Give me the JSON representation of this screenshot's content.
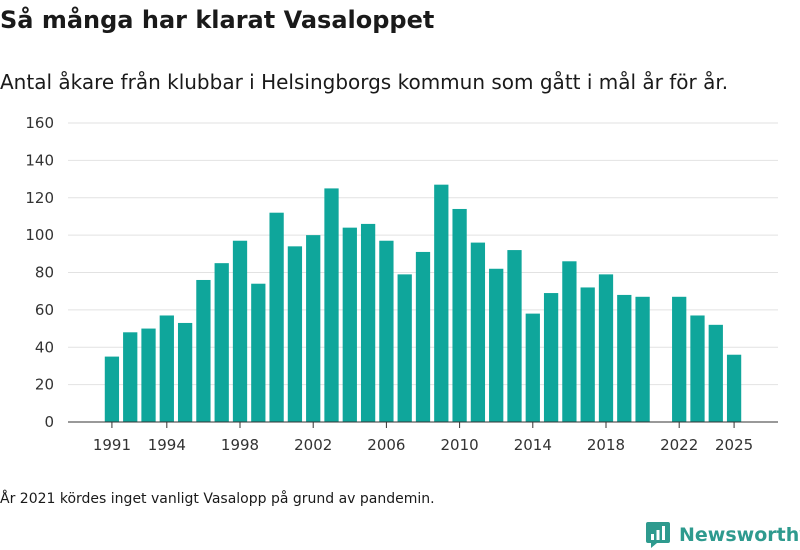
{
  "chart_data": {
    "type": "bar",
    "title": "Så många har klarat Vasaloppet",
    "subtitle": "Antal åkare från klubbar i Helsingborgs kommun som gått i mål år för år.",
    "xlabel": "",
    "ylabel": "",
    "ylim": [
      0,
      160
    ],
    "yticks": [
      0,
      20,
      40,
      60,
      80,
      100,
      120,
      140,
      160
    ],
    "xticks": [
      1991,
      1994,
      1998,
      2002,
      2006,
      2010,
      2014,
      2018,
      2022,
      2025
    ],
    "xrange": [
      1988.6,
      2027.4
    ],
    "grid": true,
    "color": "#0fa69b",
    "x": [
      1991,
      1992,
      1993,
      1994,
      1995,
      1996,
      1997,
      1998,
      1999,
      2000,
      2001,
      2002,
      2003,
      2004,
      2005,
      2006,
      2007,
      2008,
      2009,
      2010,
      2011,
      2012,
      2013,
      2014,
      2015,
      2016,
      2017,
      2018,
      2019,
      2020,
      2022,
      2023,
      2024,
      2025
    ],
    "values": [
      35,
      48,
      50,
      57,
      53,
      76,
      85,
      97,
      74,
      112,
      94,
      100,
      125,
      104,
      106,
      97,
      79,
      91,
      127,
      114,
      96,
      82,
      92,
      58,
      69,
      86,
      72,
      79,
      68,
      67,
      67,
      57,
      52,
      36
    ]
  },
  "footnote": "År 2021 kördes inget vanligt Vasalopp på grund av pandemin.",
  "brand": {
    "name": "Newsworthy",
    "logo_icon": "newsworthy-logo-icon",
    "color": "#2e9a8e"
  }
}
